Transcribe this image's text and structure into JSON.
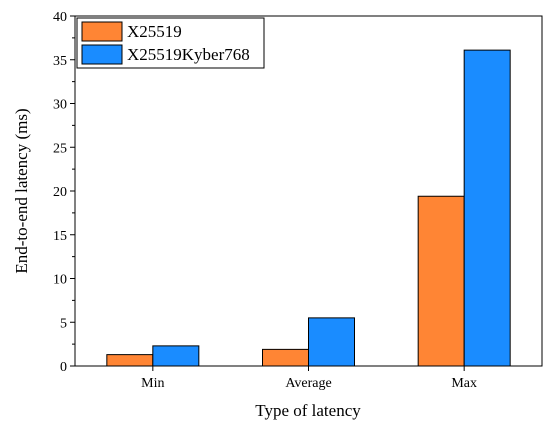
{
  "chart_data": {
    "type": "bar",
    "title": "",
    "xlabel": "Type of latency",
    "ylabel": "End-to-end latency (ms)",
    "categories": [
      "Min",
      "Average",
      "Max"
    ],
    "series": [
      {
        "name": "X25519",
        "values": [
          1.3,
          1.9,
          19.4
        ],
        "color": "#ff8534"
      },
      {
        "name": "X25519Kyber768",
        "values": [
          2.3,
          5.5,
          36.1
        ],
        "color": "#1a8cff"
      }
    ],
    "ylim": [
      0,
      40
    ],
    "yticks": [
      "0",
      "5",
      "10",
      "15",
      "20",
      "25",
      "30",
      "35",
      "40"
    ],
    "grid": false,
    "legend_position": "top-left"
  }
}
